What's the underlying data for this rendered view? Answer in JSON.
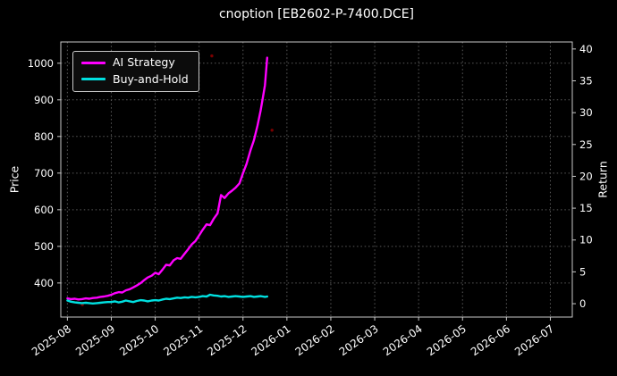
{
  "chart_data": {
    "type": "line",
    "title": "cnoption [EB2602-P-7400.DCE]",
    "xlabel": "",
    "ylabel_left": "Price",
    "ylabel_right": "Return",
    "x_tick_labels": [
      "2025-08",
      "2025-09",
      "2025-10",
      "2025-11",
      "2025-12",
      "2026-01",
      "2026-02",
      "2026-03",
      "2026-04",
      "2026-05",
      "2026-06",
      "2026-07"
    ],
    "x_range": [
      -0.15,
      11.5
    ],
    "y_left_ticks": [
      400,
      500,
      600,
      700,
      800,
      900,
      1000
    ],
    "y_left_range": [
      307,
      1058
    ],
    "y_right_ticks": [
      0,
      5,
      10,
      15,
      20,
      25,
      30,
      35,
      40
    ],
    "y_right_range": [
      -2.1,
      41.1
    ],
    "grid": true,
    "legend_position": "upper-left",
    "colors": {
      "background": "#000000",
      "text": "#ffffff",
      "grid": "#5a5a5a",
      "frame": "#c8c8c8"
    },
    "noise_color": "#7a0000",
    "noise_dots": [
      [
        0.34,
        341
      ],
      [
        2.33,
        449
      ],
      [
        3.29,
        1020
      ],
      [
        4.66,
        817
      ]
    ],
    "series": [
      {
        "name": "AI Strategy",
        "color": "#ff00ff",
        "x": [
          0,
          0.08,
          0.17,
          0.25,
          0.33,
          0.42,
          0.5,
          0.58,
          0.67,
          0.75,
          0.83,
          0.92,
          1,
          1.08,
          1.17,
          1.25,
          1.33,
          1.42,
          1.5,
          1.58,
          1.67,
          1.75,
          1.83,
          1.92,
          2,
          2.08,
          2.17,
          2.25,
          2.33,
          2.42,
          2.5,
          2.58,
          2.67,
          2.75,
          2.83,
          2.92,
          3,
          3.08,
          3.17,
          3.25,
          3.33,
          3.42,
          3.5,
          3.58,
          3.67,
          3.75,
          3.83,
          3.92,
          4,
          4.08,
          4.17,
          4.25,
          4.33,
          4.4,
          4.45,
          4.5,
          4.55
        ],
        "y": [
          358,
          356,
          357,
          355,
          356,
          358,
          357,
          359,
          360,
          362,
          363,
          365,
          368,
          372,
          375,
          374,
          380,
          383,
          388,
          393,
          400,
          408,
          415,
          420,
          428,
          424,
          437,
          450,
          448,
          462,
          468,
          466,
          480,
          492,
          505,
          515,
          530,
          545,
          560,
          558,
          575,
          590,
          640,
          632,
          645,
          652,
          660,
          672,
          700,
          725,
          762,
          790,
          830,
          870,
          905,
          940,
          1015
        ]
      },
      {
        "name": "Buy-and-Hold",
        "color": "#00e0e0",
        "x": [
          0,
          0.08,
          0.17,
          0.25,
          0.33,
          0.42,
          0.5,
          0.58,
          0.67,
          0.75,
          0.83,
          0.92,
          1,
          1.08,
          1.17,
          1.25,
          1.33,
          1.42,
          1.5,
          1.58,
          1.67,
          1.75,
          1.83,
          1.92,
          2,
          2.08,
          2.17,
          2.25,
          2.33,
          2.42,
          2.5,
          2.58,
          2.67,
          2.75,
          2.83,
          2.92,
          3,
          3.08,
          3.17,
          3.25,
          3.33,
          3.42,
          3.5,
          3.58,
          3.67,
          3.75,
          3.83,
          3.92,
          4,
          4.08,
          4.17,
          4.25,
          4.33,
          4.4,
          4.45,
          4.5,
          4.55
        ],
        "y": [
          352,
          349,
          347,
          346,
          345,
          346,
          345,
          344,
          345,
          346,
          347,
          348,
          348,
          350,
          347,
          349,
          352,
          350,
          348,
          351,
          353,
          352,
          350,
          352,
          353,
          352,
          355,
          357,
          356,
          358,
          360,
          359,
          361,
          360,
          362,
          361,
          362,
          364,
          363,
          368,
          366,
          365,
          363,
          364,
          362,
          363,
          364,
          363,
          362,
          363,
          364,
          362,
          363,
          364,
          363,
          362,
          363
        ]
      }
    ]
  }
}
